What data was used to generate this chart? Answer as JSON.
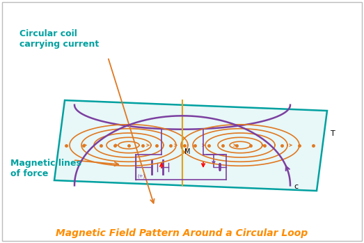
{
  "title": "Magnetic Field Pattern Around a Circular Loop",
  "title_color": "#FF8C00",
  "title_fontsize": 10,
  "label_circular_coil": "Circular coil\ncarrying current",
  "label_magnetic_lines": "Magnetic lines\nof force",
  "label_C": "c",
  "label_M": "M",
  "label_T": "T",
  "coil_color": "#7B3FA0",
  "field_line_color": "#E07820",
  "plane_edge_color": "#00A0A0",
  "plane_face_color": "#E8F7F7",
  "arrow_label_color": "#E07820",
  "label_color": "#00A0A0",
  "circuit_color": "#7B3FA0",
  "bg_color": "#FFFFFF",
  "border_color": "#BBBBBB"
}
